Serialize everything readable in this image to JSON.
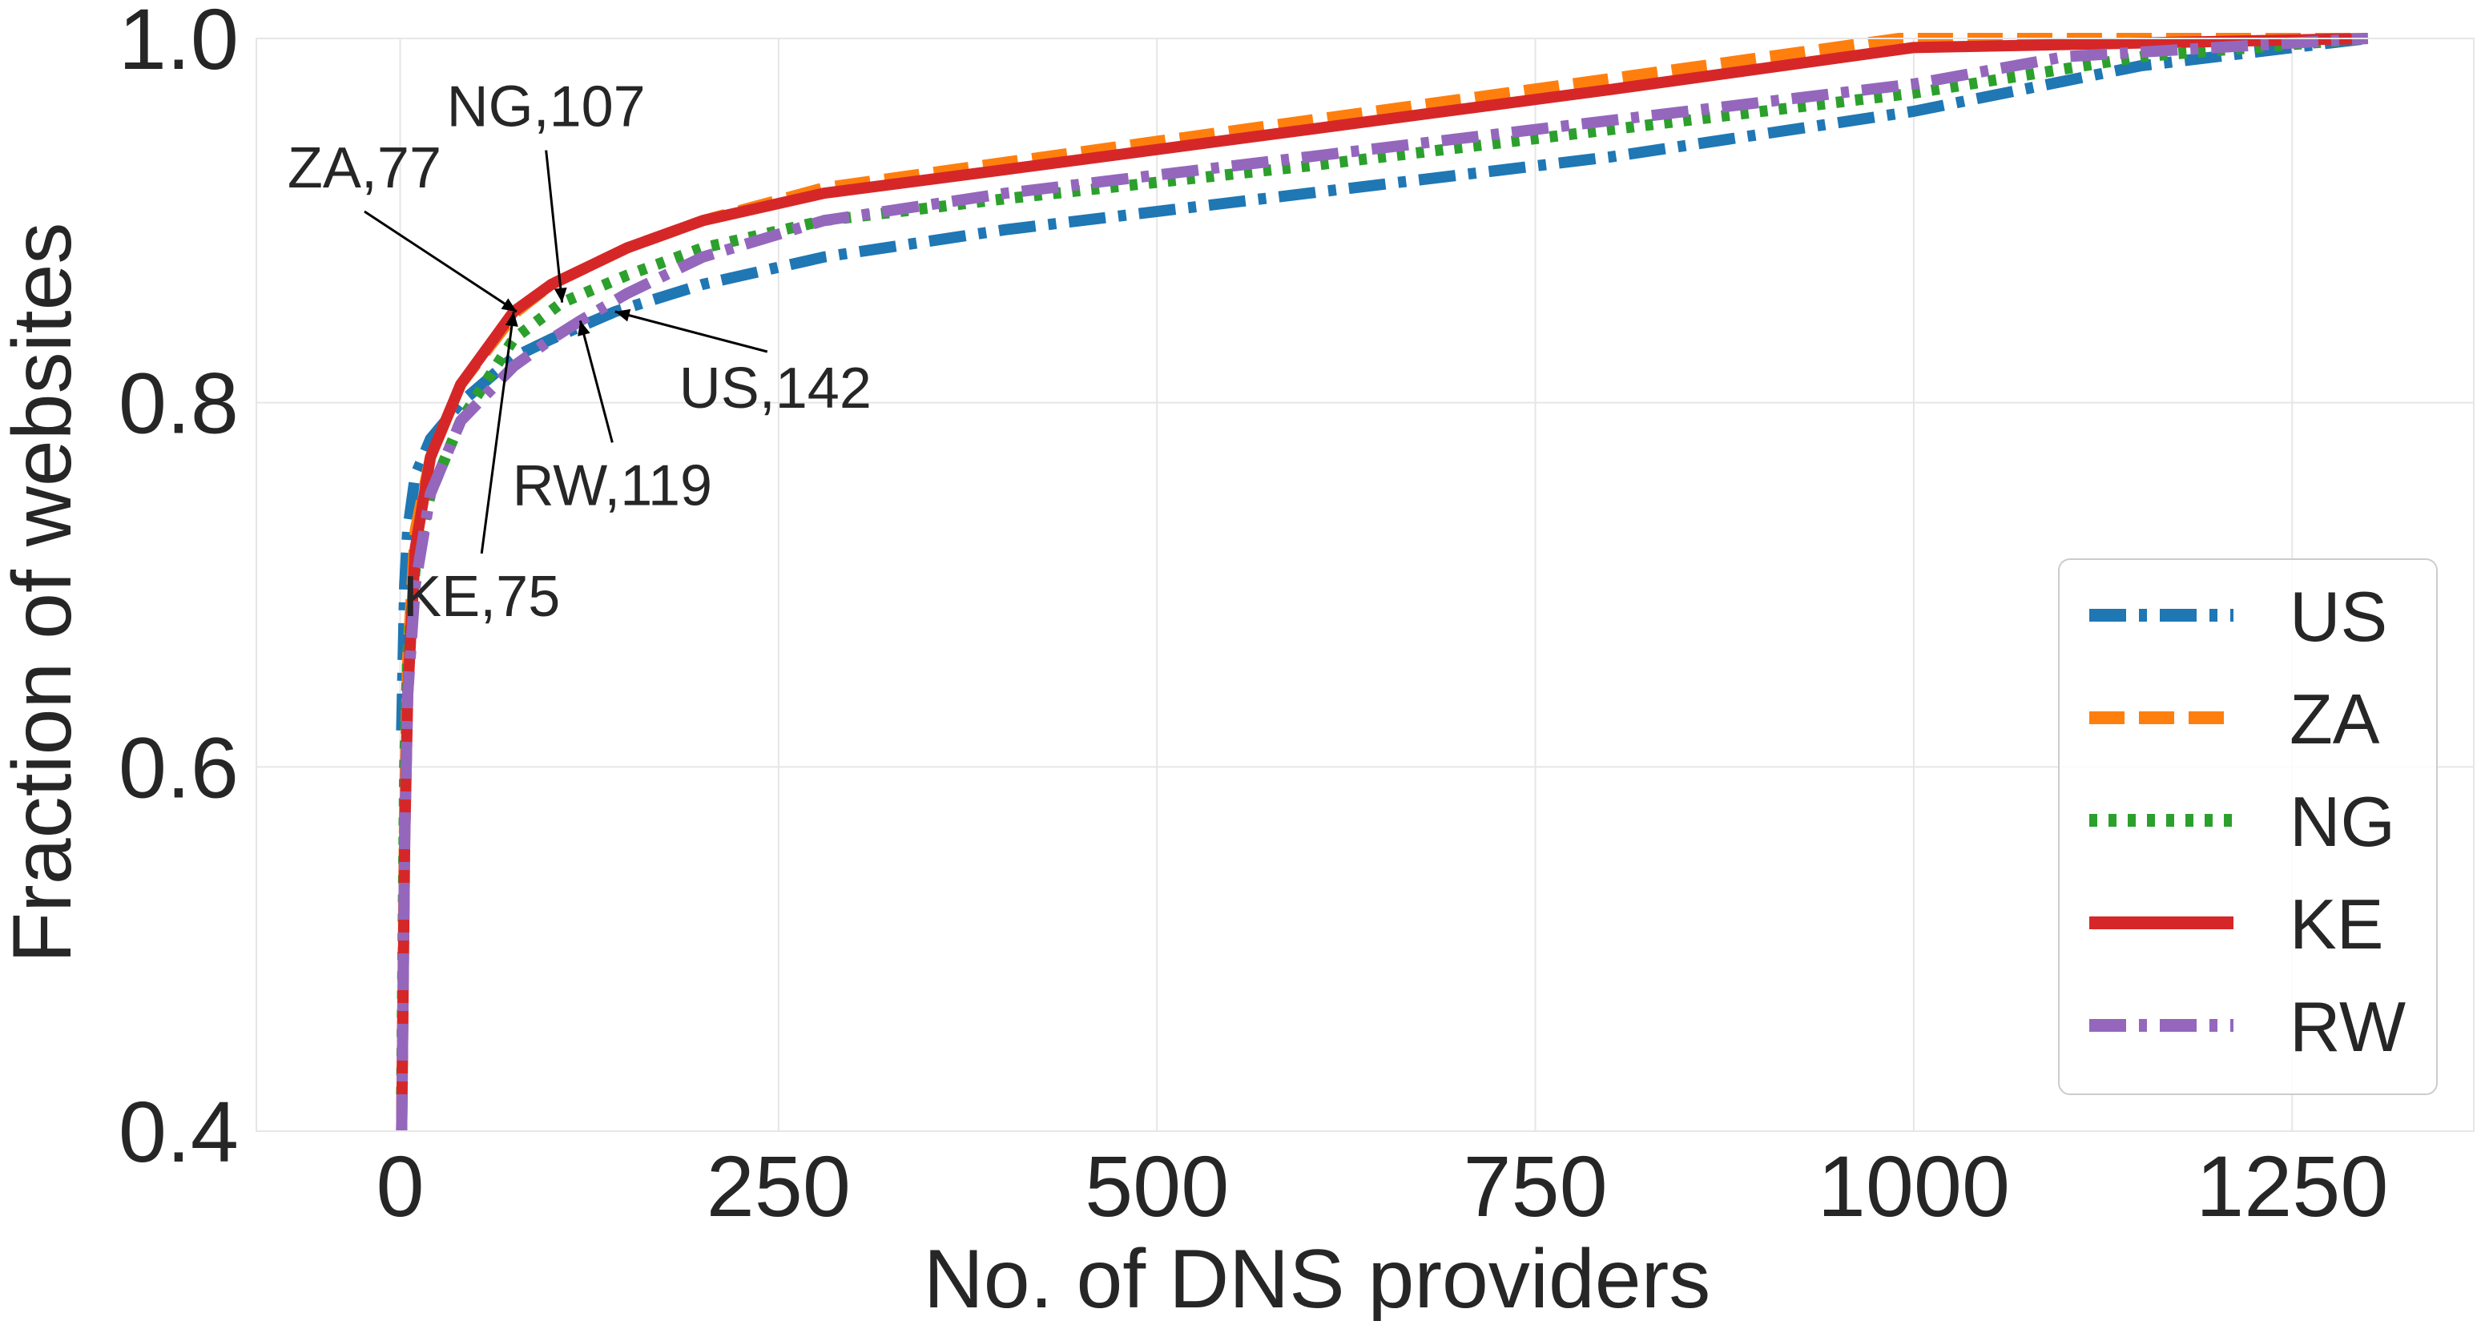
{
  "chart_data": {
    "type": "line",
    "title": "",
    "xlabel": "No. of DNS providers",
    "ylabel": "Fraction of websites",
    "xlim": [
      -95,
      1370
    ],
    "ylim": [
      0.4,
      1.0
    ],
    "xticks": [
      0,
      250,
      500,
      750,
      1000,
      1250
    ],
    "xtick_labels": [
      "0",
      "250",
      "500",
      "750",
      "1000",
      "1250"
    ],
    "yticks": [
      0.4,
      0.6,
      0.8,
      1.0
    ],
    "ytick_labels": [
      "0.4",
      "0.6",
      "0.8",
      "1.0"
    ],
    "grid": true,
    "legend_position": "bottom-right",
    "series": [
      {
        "name": "US",
        "color": "#1f77b4",
        "dash": "dashdot",
        "x": [
          1,
          3,
          5,
          10,
          20,
          40,
          75,
          100,
          142,
          200,
          280,
          400,
          600,
          800,
          1000,
          1150,
          1300
        ],
        "y": [
          0.62,
          0.7,
          0.73,
          0.76,
          0.78,
          0.8,
          0.825,
          0.835,
          0.85,
          0.865,
          0.88,
          0.895,
          0.915,
          0.935,
          0.96,
          0.985,
          1.0
        ]
      },
      {
        "name": "ZA",
        "color": "#ff7f0e",
        "dash": "dashed",
        "x": [
          1,
          3,
          5,
          10,
          20,
          40,
          77,
          100,
          150,
          200,
          280,
          400,
          600,
          800,
          990,
          1300
        ],
        "y": [
          0.4,
          0.58,
          0.66,
          0.73,
          0.77,
          0.81,
          0.85,
          0.865,
          0.885,
          0.9,
          0.918,
          0.932,
          0.955,
          0.978,
          1.0,
          1.0
        ]
      },
      {
        "name": "NG",
        "color": "#2ca02c",
        "dash": "dotted",
        "x": [
          1,
          3,
          5,
          10,
          20,
          40,
          75,
          107,
          150,
          200,
          280,
          400,
          600,
          800,
          1000,
          1150,
          1300
        ],
        "y": [
          0.42,
          0.6,
          0.66,
          0.71,
          0.75,
          0.79,
          0.835,
          0.855,
          0.87,
          0.885,
          0.9,
          0.912,
          0.93,
          0.95,
          0.97,
          0.99,
          1.0
        ]
      },
      {
        "name": "KE",
        "color": "#d62728",
        "dash": "solid",
        "x": [
          1,
          3,
          5,
          10,
          20,
          40,
          75,
          100,
          150,
          200,
          280,
          400,
          600,
          800,
          1000,
          1300
        ],
        "y": [
          0.4,
          0.56,
          0.64,
          0.72,
          0.77,
          0.81,
          0.85,
          0.865,
          0.885,
          0.9,
          0.915,
          0.928,
          0.95,
          0.972,
          0.995,
          1.0
        ]
      },
      {
        "name": "RW",
        "color": "#9467bd",
        "dash": "dashdot",
        "x": [
          1,
          3,
          5,
          10,
          20,
          40,
          75,
          100,
          119,
          150,
          200,
          280,
          400,
          600,
          800,
          1000,
          1100,
          1300
        ],
        "y": [
          0.4,
          0.56,
          0.64,
          0.7,
          0.75,
          0.79,
          0.82,
          0.835,
          0.845,
          0.86,
          0.88,
          0.9,
          0.915,
          0.935,
          0.955,
          0.975,
          0.99,
          1.0
        ]
      }
    ],
    "annotations": [
      {
        "text": "ZA,77",
        "x": 77,
        "y": 0.85,
        "label_anchor": "upper-left"
      },
      {
        "text": "NG,107",
        "x": 107,
        "y": 0.855,
        "label_anchor": "upper"
      },
      {
        "text": "US,142",
        "x": 142,
        "y": 0.85,
        "label_anchor": "lower-right"
      },
      {
        "text": "RW,119",
        "x": 119,
        "y": 0.845,
        "label_anchor": "lower"
      },
      {
        "text": "KE,75",
        "x": 75,
        "y": 0.85,
        "label_anchor": "lower"
      }
    ]
  }
}
